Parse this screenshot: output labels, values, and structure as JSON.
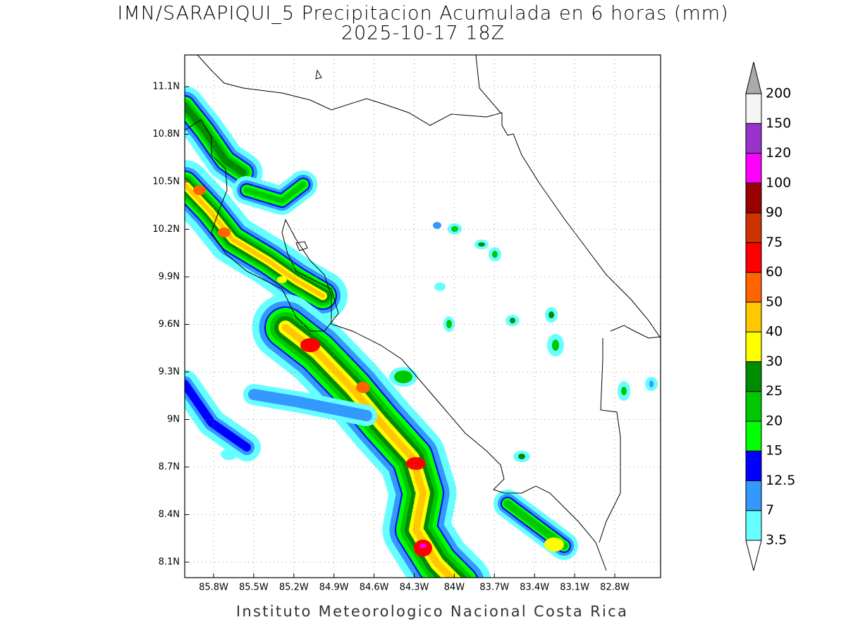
{
  "header": {
    "title": "IMN/SARAPIQUI_5 Precipitacion Acumulada en 6 horas (mm)",
    "subtitle": "2025-10-17 18Z"
  },
  "map": {
    "lat_ticks": [
      "11.1N",
      "10.8N",
      "10.5N",
      "10.2N",
      "9.9N",
      "9.6N",
      "9.3N",
      "9N",
      "8.7N",
      "8.4N",
      "8.1N"
    ],
    "lon_ticks": [
      "85.8W",
      "85.5W",
      "85.2W",
      "84.9W",
      "84.6W",
      "84.3W",
      "84W",
      "83.7W",
      "83.4W",
      "83.1W",
      "82.8W"
    ]
  },
  "colorbar": {
    "labels": [
      3.5,
      7,
      12.5,
      15,
      20,
      25,
      30,
      40,
      50,
      60,
      75,
      90,
      100,
      120,
      150,
      200
    ],
    "colors": [
      "#66ffff",
      "#3399ff",
      "#0000ff",
      "#00ff00",
      "#00c800",
      "#008c00",
      "#ffff00",
      "#ffc800",
      "#ff6400",
      "#ff0000",
      "#cc3300",
      "#990000",
      "#ff00ff",
      "#9933cc",
      "#f5f5f5"
    ],
    "under_color": "#ffffff",
    "over_color": "#aaaaaa"
  },
  "footer": "Instituto Meteorologico Nacional Costa Rica"
}
